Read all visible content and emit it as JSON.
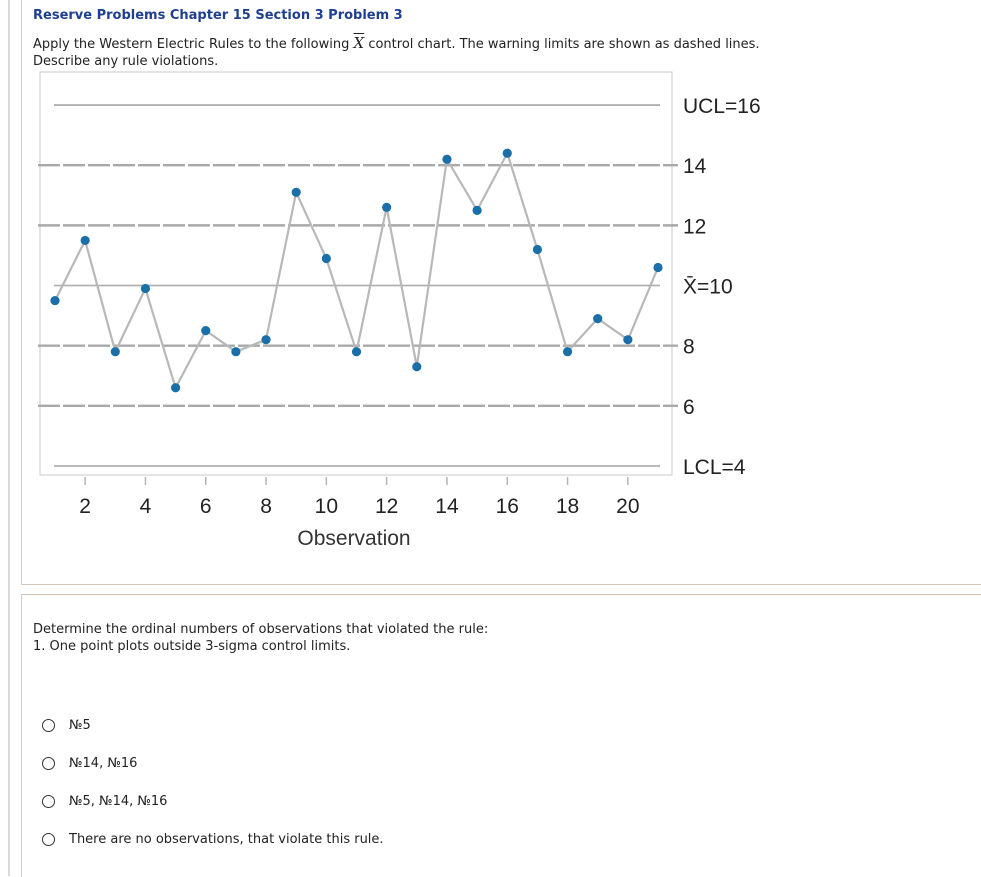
{
  "problem": {
    "title": "Reserve Problems Chapter 15 Section 3 Problem 3",
    "instructions": {
      "part1": "Apply the Western Electric Rules to the following",
      "xbar": "X",
      "part2": "control chart. The warning limits are shown as dashed lines.",
      "line2": "Describe any rule violations."
    }
  },
  "chart_data": {
    "type": "line",
    "xlabel": "Observation",
    "ylabel": "",
    "x": [
      1,
      2,
      3,
      4,
      5,
      6,
      7,
      8,
      9,
      10,
      11,
      12,
      13,
      14,
      15,
      16,
      17,
      18,
      19,
      20,
      21
    ],
    "values": [
      9.5,
      11.5,
      7.8,
      9.9,
      6.6,
      8.5,
      7.8,
      8.2,
      13.1,
      10.9,
      7.8,
      12.6,
      7.3,
      14.2,
      12.5,
      14.4,
      11.2,
      7.8,
      8.9,
      8.2,
      10.6
    ],
    "xticks": [
      2,
      4,
      6,
      8,
      10,
      12,
      14,
      16,
      18,
      20
    ],
    "ylim": [
      3.7,
      17.1
    ],
    "control_lines": [
      {
        "label": "UCL=16",
        "value": 16,
        "style": "solid"
      },
      {
        "label": "14",
        "value": 14,
        "style": "dashed"
      },
      {
        "label": "12",
        "value": 12,
        "style": "dashed"
      },
      {
        "label": "X̄=10",
        "value": 10,
        "style": "solid"
      },
      {
        "label": "8",
        "value": 8,
        "style": "dashed"
      },
      {
        "label": "6",
        "value": 6,
        "style": "dashed"
      },
      {
        "label": "LCL=4",
        "value": 4,
        "style": "solid"
      }
    ],
    "point_color": "#1a6fa8",
    "line_color": "#b8b8b8",
    "grid": false
  },
  "question": {
    "prompt": "Determine the ordinal numbers of observations that violated the rule:",
    "rule": "1. One point plots outside 3-sigma control limits."
  },
  "options": [
    {
      "label": "№5"
    },
    {
      "label": "№14, №16"
    },
    {
      "label": "№5, №14, №16"
    },
    {
      "label": "There are no observations, that violate this rule."
    }
  ]
}
